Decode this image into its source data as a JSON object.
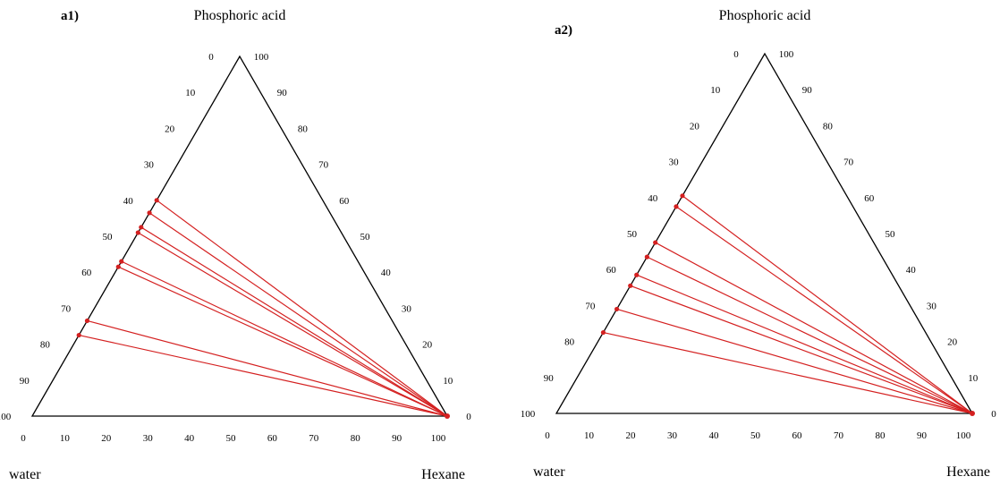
{
  "chart_data": [
    {
      "type": "ternary",
      "panel_label": "a1)",
      "vertex_labels": {
        "top": "Phosphoric acid",
        "left": "water",
        "right": "Hexane"
      },
      "ticks": {
        "left_edge": [
          "0",
          "10",
          "20",
          "30",
          "40",
          "50",
          "60",
          "70",
          "80",
          "90",
          "100"
        ],
        "right_edge": [
          "100",
          "90",
          "80",
          "70",
          "60",
          "50",
          "40",
          "30",
          "20",
          "10",
          "0"
        ],
        "bottom_edge": [
          "0",
          "10",
          "20",
          "30",
          "40",
          "50",
          "60",
          "70",
          "80",
          "90",
          "100"
        ]
      },
      "tie_line_endpoint": {
        "hexane": 100,
        "acid": 0
      },
      "raffinate_acid_fraction": [
        0.6,
        0.565,
        0.525,
        0.51,
        0.43,
        0.415,
        0.265,
        0.225
      ],
      "color": "#d42020"
    },
    {
      "type": "ternary",
      "panel_label": "a2)",
      "vertex_labels": {
        "top": "Phosphoric acid",
        "left": "water",
        "right": "Hexane"
      },
      "ticks": {
        "left_edge": [
          "0",
          "10",
          "20",
          "30",
          "40",
          "50",
          "60",
          "70",
          "80",
          "90",
          "100"
        ],
        "right_edge": [
          "100",
          "90",
          "80",
          "70",
          "60",
          "50",
          "40",
          "30",
          "20",
          "10",
          "0"
        ],
        "bottom_edge": [
          "0",
          "10",
          "20",
          "30",
          "40",
          "50",
          "60",
          "70",
          "80",
          "90",
          "100"
        ]
      },
      "tie_line_endpoint": {
        "hexane": 100,
        "acid": 0
      },
      "raffinate_acid_fraction": [
        0.605,
        0.575,
        0.475,
        0.435,
        0.385,
        0.355,
        0.29,
        0.225
      ],
      "color": "#d42020"
    }
  ]
}
